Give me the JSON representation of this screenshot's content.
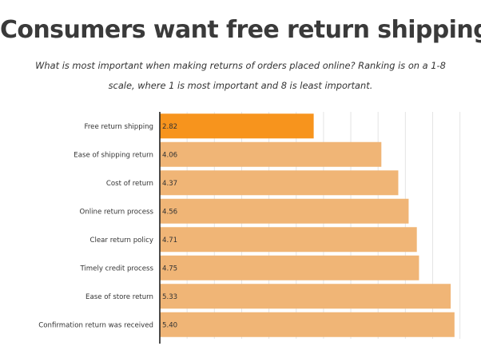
{
  "title": "Consumers want free return shipping",
  "subtitle": "What is most important when making returns of orders placed online? Ranking is on a 1-8 scale, where 1 is most important and 8 is least important.",
  "chart_data": {
    "type": "bar",
    "orientation": "horizontal",
    "categories": [
      "Free return shipping",
      "Ease of shipping return",
      "Cost of return",
      "Online return process",
      "Clear return policy",
      "Timely credit process",
      "Ease of store return",
      "Confirmation return was received"
    ],
    "values": [
      2.82,
      4.06,
      4.37,
      4.56,
      4.71,
      4.75,
      5.33,
      5.4
    ],
    "value_labels": [
      "2.82",
      "4.06",
      "4.37",
      "4.56",
      "4.71",
      "4.75",
      "5.33",
      "5.40"
    ],
    "xlim": [
      0,
      5.5
    ],
    "grid": true,
    "highlight_index": 0,
    "colors": {
      "highlight": "#f7941d",
      "bar": "#f0b576",
      "grid": "#e4e4e4",
      "axis": "#222222"
    }
  }
}
